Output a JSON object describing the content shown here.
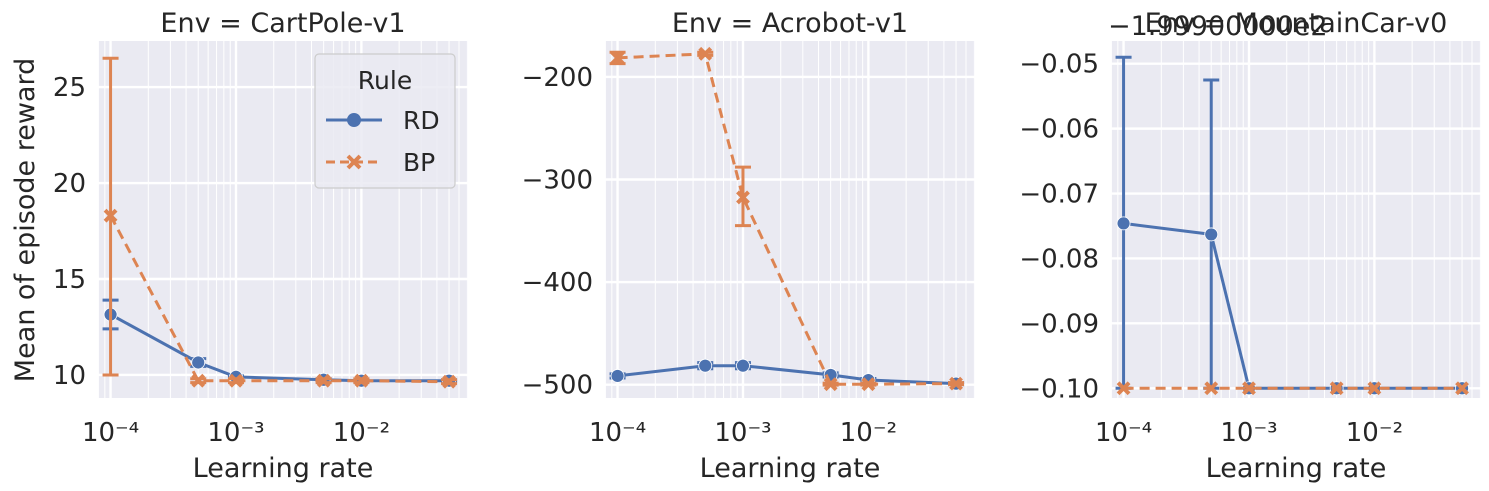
{
  "chart_data": [
    {
      "type": "line",
      "title": "Env = CartPole-v1",
      "xlabel": "Learning rate",
      "ylabel": "Mean of episode reward",
      "xscale": "log",
      "xlim": [
        7.94e-05,
        0.0708
      ],
      "ylim": [
        8.8,
        27.4
      ],
      "yticks": [
        10,
        15,
        20,
        25
      ],
      "ytick_labels": [
        "10",
        "15",
        "20",
        "25"
      ],
      "xticks": [
        0.0001,
        0.001,
        0.01
      ],
      "xtick_labels": [
        "10⁻⁴",
        "10⁻³",
        "10⁻²"
      ],
      "legend": {
        "title": "Rule",
        "placement": "top-right"
      },
      "grid": true,
      "series": [
        {
          "name": "RD",
          "color": "#4c72b0",
          "marker": "circle",
          "linestyle": "solid",
          "x": [
            0.0001,
            0.0005,
            0.001,
            0.005,
            0.01,
            0.05
          ],
          "y": [
            13.15,
            10.65,
            9.9,
            9.75,
            9.7,
            9.7
          ],
          "err_low": [
            12.4,
            10.45,
            9.85,
            9.7,
            9.65,
            9.65
          ],
          "err_high": [
            13.9,
            10.85,
            9.95,
            9.8,
            9.75,
            9.75
          ]
        },
        {
          "name": "BP",
          "color": "#dd8452",
          "marker": "x",
          "linestyle": "dashed",
          "x": [
            0.0001,
            0.0005,
            0.001,
            0.005,
            0.01,
            0.05
          ],
          "y": [
            18.3,
            9.7,
            9.7,
            9.7,
            9.7,
            9.65
          ],
          "err_low": [
            10.0,
            9.6,
            9.6,
            9.6,
            9.6,
            9.55
          ],
          "err_high": [
            26.5,
            9.8,
            9.8,
            9.8,
            9.8,
            9.75
          ]
        }
      ]
    },
    {
      "type": "line",
      "title": "Env = Acrobot-v1",
      "xlabel": "Learning rate",
      "ylabel": "",
      "xscale": "log",
      "xlim": [
        7.94e-05,
        0.0708
      ],
      "ylim": [
        -513,
        -165
      ],
      "yticks": [
        -500,
        -400,
        -300,
        -200
      ],
      "ytick_labels": [
        "−500",
        "−400",
        "−300",
        "−200"
      ],
      "xticks": [
        0.0001,
        0.001,
        0.01
      ],
      "xtick_labels": [
        "10⁻⁴",
        "10⁻³",
        "10⁻²"
      ],
      "grid": true,
      "series": [
        {
          "name": "RD",
          "color": "#4c72b0",
          "marker": "circle",
          "linestyle": "solid",
          "x": [
            0.0001,
            0.0005,
            0.001,
            0.005,
            0.01,
            0.05
          ],
          "y": [
            -491.5,
            -481.5,
            -481.5,
            -490.5,
            -495.5,
            -499
          ],
          "err_low": [
            -493.5,
            -484.5,
            -484.5,
            -492.5,
            -497,
            -500
          ],
          "err_high": [
            -489.5,
            -478.5,
            -478.5,
            -488.5,
            -494,
            -498
          ]
        },
        {
          "name": "BP",
          "color": "#dd8452",
          "marker": "x",
          "linestyle": "dashed",
          "x": [
            0.0001,
            0.0005,
            0.001,
            0.005,
            0.01,
            0.05
          ],
          "y": [
            -181.5,
            -177.5,
            -317.5,
            -499.5,
            -499.5,
            -499
          ],
          "err_low": [
            -187,
            -179,
            -345,
            -500.5,
            -500.5,
            -500
          ],
          "err_high": [
            -176,
            -176,
            -288,
            -498.5,
            -498.5,
            -498
          ]
        }
      ]
    },
    {
      "type": "line",
      "title": "Env = MountainCar-v0",
      "offset_label": "−1.99900000e2",
      "xlabel": "Learning rate",
      "ylabel": "",
      "xscale": "log",
      "xlim": [
        7.94e-05,
        0.0708
      ],
      "ylim": [
        -0.1015,
        -0.0465
      ],
      "yticks": [
        -0.1,
        -0.09,
        -0.08,
        -0.07,
        -0.06,
        -0.05
      ],
      "ytick_labels": [
        "−0.10",
        "−0.09",
        "−0.08",
        "−0.07",
        "−0.06",
        "−0.05"
      ],
      "xticks": [
        0.0001,
        0.001,
        0.01
      ],
      "xtick_labels": [
        "10⁻⁴",
        "10⁻³",
        "10⁻²"
      ],
      "grid": true,
      "series": [
        {
          "name": "RD",
          "color": "#4c72b0",
          "marker": "circle",
          "linestyle": "solid",
          "x": [
            0.0001,
            0.0005,
            0.001,
            0.005,
            0.01,
            0.05
          ],
          "y": [
            -0.0746,
            -0.0763,
            -0.1,
            -0.1,
            -0.1,
            -0.1
          ],
          "err_low": [
            -0.1,
            -0.1,
            -0.1,
            -0.1,
            -0.1,
            -0.1
          ],
          "err_high": [
            -0.049,
            -0.0525,
            -0.1,
            -0.1,
            -0.1,
            -0.1
          ]
        },
        {
          "name": "BP",
          "color": "#dd8452",
          "marker": "x",
          "linestyle": "dashed",
          "x": [
            0.0001,
            0.0005,
            0.001,
            0.005,
            0.01,
            0.05
          ],
          "y": [
            -0.1,
            -0.1,
            -0.1,
            -0.1,
            -0.1,
            -0.1
          ],
          "err_low": [
            -0.1,
            -0.1,
            -0.1,
            -0.1,
            -0.1,
            -0.1
          ],
          "err_high": [
            -0.1,
            -0.1,
            -0.1,
            -0.1,
            -0.1,
            -0.1
          ]
        }
      ]
    }
  ]
}
